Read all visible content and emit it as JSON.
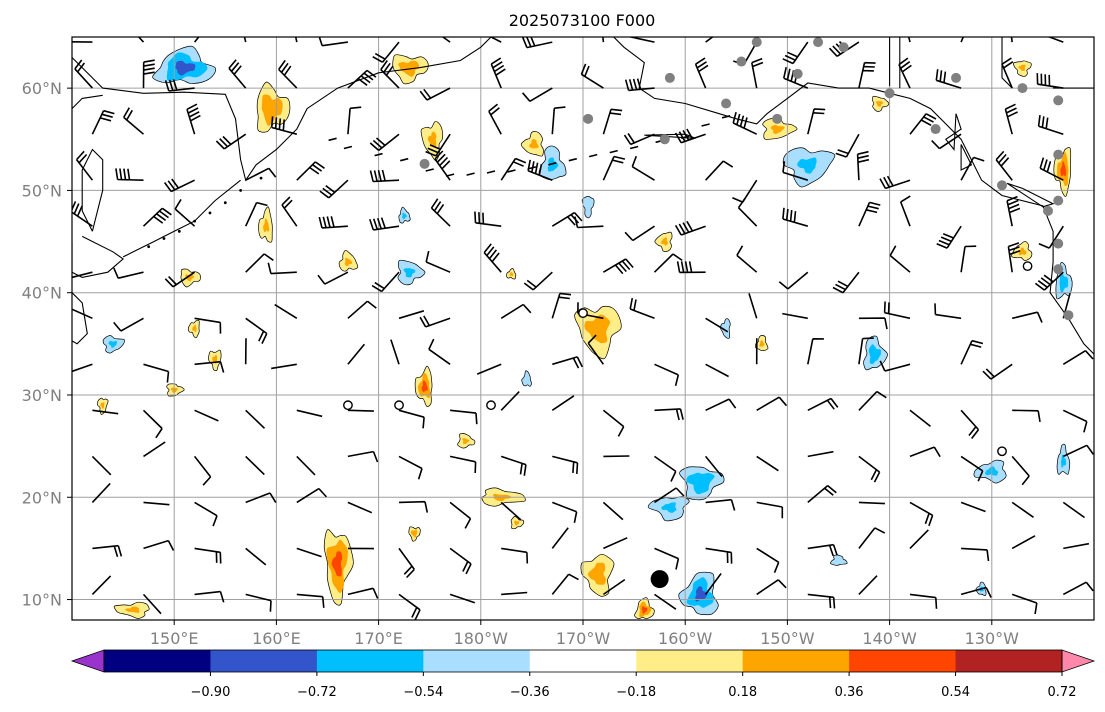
{
  "title": "2025073100 F000",
  "map": {
    "lon_range": [
      140,
      240
    ],
    "lat_range": [
      8,
      65
    ],
    "grid": true
  },
  "chart_data": {
    "type": "heatmap",
    "title": "2025073100 F000",
    "xlabel": "",
    "ylabel": "",
    "xlim": [
      140,
      240
    ],
    "ylim": [
      8,
      65
    ],
    "x_ticks": [
      {
        "value": 150,
        "label": "150°E"
      },
      {
        "value": 160,
        "label": "160°E"
      },
      {
        "value": 170,
        "label": "170°E"
      },
      {
        "value": 180,
        "label": "180°W"
      },
      {
        "value": 190,
        "label": "170°W"
      },
      {
        "value": 200,
        "label": "160°W"
      },
      {
        "value": 210,
        "label": "150°W"
      },
      {
        "value": 220,
        "label": "140°W"
      },
      {
        "value": 230,
        "label": "130°W"
      }
    ],
    "y_ticks": [
      {
        "value": 10,
        "label": "10°N"
      },
      {
        "value": 20,
        "label": "20°N"
      },
      {
        "value": 30,
        "label": "30°N"
      },
      {
        "value": 40,
        "label": "40°N"
      },
      {
        "value": 50,
        "label": "50°N"
      },
      {
        "value": 60,
        "label": "60°N"
      }
    ],
    "colorbar": {
      "levels": [
        -0.9,
        -0.72,
        -0.54,
        -0.36,
        -0.18,
        0.18,
        0.36,
        0.54,
        0.72,
        0.9
      ],
      "tick_labels": [
        "−0.90",
        "−0.72",
        "−0.54",
        "−0.36",
        "−0.18",
        "0.18",
        "0.36",
        "0.54",
        "0.72",
        "0.90"
      ],
      "colors": [
        "#9933cc",
        "#000080",
        "#3355cc",
        "#00bfff",
        "#aadeff",
        "#ffffff",
        "#ffee88",
        "#ffa500",
        "#ff4500",
        "#b22222",
        "#ff88aa"
      ],
      "extend": "both"
    },
    "features": [
      {
        "lon": 151,
        "lat": 62,
        "value": -0.6,
        "rx": 3.2,
        "ry": 2.0
      },
      {
        "lon": 159.5,
        "lat": 58,
        "value": 0.5,
        "rx": 2.0,
        "ry": 2.6
      },
      {
        "lon": 173,
        "lat": 62,
        "value": 0.45,
        "rx": 2.2,
        "ry": 1.6
      },
      {
        "lon": 175.3,
        "lat": 55,
        "value": 0.4,
        "rx": 1.3,
        "ry": 2.2
      },
      {
        "lon": 185.2,
        "lat": 54.5,
        "value": 0.4,
        "rx": 1.3,
        "ry": 1.5
      },
      {
        "lon": 187,
        "lat": 52.5,
        "value": -0.4,
        "rx": 1.5,
        "ry": 2.2
      },
      {
        "lon": 209,
        "lat": 56,
        "value": 0.4,
        "rx": 2.0,
        "ry": 1.3
      },
      {
        "lon": 212,
        "lat": 52.5,
        "value": -0.4,
        "rx": 3.0,
        "ry": 2.3
      },
      {
        "lon": 237,
        "lat": 52,
        "value": 0.55,
        "rx": 1.0,
        "ry": 2.5
      },
      {
        "lon": 159,
        "lat": 46.5,
        "value": 0.4,
        "rx": 0.9,
        "ry": 2.0
      },
      {
        "lon": 167,
        "lat": 43,
        "value": 0.4,
        "rx": 1.1,
        "ry": 1.2
      },
      {
        "lon": 173,
        "lat": 42,
        "value": -0.4,
        "rx": 1.6,
        "ry": 1.5
      },
      {
        "lon": 190.5,
        "lat": 48.5,
        "value": -0.35,
        "rx": 0.7,
        "ry": 1.5
      },
      {
        "lon": 198,
        "lat": 45,
        "value": 0.4,
        "rx": 1.0,
        "ry": 1.2
      },
      {
        "lon": 233,
        "lat": 44,
        "value": 0.4,
        "rx": 1.2,
        "ry": 1.1
      },
      {
        "lon": 237,
        "lat": 41,
        "value": -0.45,
        "rx": 1.0,
        "ry": 2.0
      },
      {
        "lon": 151.5,
        "lat": 41.5,
        "value": 0.4,
        "rx": 1.3,
        "ry": 1.0
      },
      {
        "lon": 191.5,
        "lat": 36.5,
        "value": 0.45,
        "rx": 2.6,
        "ry": 3.0
      },
      {
        "lon": 204,
        "lat": 36.5,
        "value": -0.35,
        "rx": 0.6,
        "ry": 1.3
      },
      {
        "lon": 207.5,
        "lat": 35,
        "value": 0.4,
        "rx": 0.7,
        "ry": 1.0
      },
      {
        "lon": 218.5,
        "lat": 34,
        "value": -0.45,
        "rx": 1.3,
        "ry": 2.0
      },
      {
        "lon": 144,
        "lat": 35,
        "value": -0.4,
        "rx": 1.3,
        "ry": 1.0
      },
      {
        "lon": 154,
        "lat": 33.5,
        "value": 0.4,
        "rx": 0.8,
        "ry": 1.2
      },
      {
        "lon": 174.5,
        "lat": 30.8,
        "value": 0.55,
        "rx": 1.0,
        "ry": 2.0
      },
      {
        "lon": 184.5,
        "lat": 31.5,
        "value": -0.35,
        "rx": 0.6,
        "ry": 1.0
      },
      {
        "lon": 178.5,
        "lat": 25.5,
        "value": 0.4,
        "rx": 1.0,
        "ry": 0.9
      },
      {
        "lon": 201.5,
        "lat": 21.5,
        "value": -0.5,
        "rx": 2.3,
        "ry": 2.0
      },
      {
        "lon": 198.5,
        "lat": 19,
        "value": -0.4,
        "rx": 2.3,
        "ry": 1.5
      },
      {
        "lon": 230,
        "lat": 22.5,
        "value": -0.4,
        "rx": 2.0,
        "ry": 1.3
      },
      {
        "lon": 237,
        "lat": 23.5,
        "value": -0.4,
        "rx": 0.8,
        "ry": 1.8
      },
      {
        "lon": 182,
        "lat": 20,
        "value": 0.4,
        "rx": 2.8,
        "ry": 1.0
      },
      {
        "lon": 166,
        "lat": 13.5,
        "value": 0.6,
        "rx": 1.5,
        "ry": 4.0
      },
      {
        "lon": 191.5,
        "lat": 12.5,
        "value": 0.45,
        "rx": 1.8,
        "ry": 2.5
      },
      {
        "lon": 201.5,
        "lat": 10.5,
        "value": -0.55,
        "rx": 2.0,
        "ry": 2.5
      },
      {
        "lon": 196,
        "lat": 9,
        "value": 0.55,
        "rx": 1.0,
        "ry": 1.2
      },
      {
        "lon": 183.5,
        "lat": 17.5,
        "value": 0.4,
        "rx": 0.8,
        "ry": 0.7
      },
      {
        "lon": 173.5,
        "lat": 16.5,
        "value": 0.45,
        "rx": 0.7,
        "ry": 0.8
      },
      {
        "lon": 146,
        "lat": 9,
        "value": 0.4,
        "rx": 2.2,
        "ry": 0.9
      },
      {
        "lon": 229,
        "lat": 11,
        "value": -0.4,
        "rx": 0.6,
        "ry": 0.8
      },
      {
        "lon": 215,
        "lat": 13.8,
        "value": -0.35,
        "rx": 1.0,
        "ry": 0.7
      },
      {
        "lon": 150,
        "lat": 30.5,
        "value": 0.4,
        "rx": 1.0,
        "ry": 0.8
      },
      {
        "lon": 143,
        "lat": 29,
        "value": 0.4,
        "rx": 0.6,
        "ry": 1.0
      },
      {
        "lon": 152,
        "lat": 36.5,
        "value": 0.4,
        "rx": 0.7,
        "ry": 1.0
      },
      {
        "lon": 183,
        "lat": 41.8,
        "value": 0.4,
        "rx": 0.6,
        "ry": 0.6
      },
      {
        "lon": 172.5,
        "lat": 47.5,
        "value": -0.4,
        "rx": 0.7,
        "ry": 0.9
      },
      {
        "lon": 219,
        "lat": 58.5,
        "value": 0.4,
        "rx": 1.0,
        "ry": 0.9
      },
      {
        "lon": 233,
        "lat": 62,
        "value": 0.4,
        "rx": 1.0,
        "ry": 1.0
      }
    ],
    "stations_filled": [
      {
        "lon": 207,
        "lat": 64.5
      },
      {
        "lon": 213,
        "lat": 64.5
      },
      {
        "lon": 215.5,
        "lat": 64
      },
      {
        "lon": 205.5,
        "lat": 62.6
      },
      {
        "lon": 211,
        "lat": 61.4
      },
      {
        "lon": 198.5,
        "lat": 61
      },
      {
        "lon": 204,
        "lat": 58.5
      },
      {
        "lon": 209,
        "lat": 57
      },
      {
        "lon": 190.5,
        "lat": 57
      },
      {
        "lon": 198,
        "lat": 55
      },
      {
        "lon": 174.5,
        "lat": 52.6
      },
      {
        "lon": 226.5,
        "lat": 61
      },
      {
        "lon": 233,
        "lat": 60
      },
      {
        "lon": 236.5,
        "lat": 58.8
      },
      {
        "lon": 220,
        "lat": 59.5
      },
      {
        "lon": 224.5,
        "lat": 56
      },
      {
        "lon": 236.5,
        "lat": 53.5
      },
      {
        "lon": 231,
        "lat": 50.5
      },
      {
        "lon": 235.5,
        "lat": 48
      },
      {
        "lon": 236.5,
        "lat": 49
      },
      {
        "lon": 236.5,
        "lat": 44.8
      },
      {
        "lon": 236.5,
        "lat": 42.3
      },
      {
        "lon": 237.5,
        "lat": 37.8
      }
    ],
    "stations_open": [
      {
        "lon": 190,
        "lat": 38
      },
      {
        "lon": 167,
        "lat": 29
      },
      {
        "lon": 172,
        "lat": 29
      },
      {
        "lon": 181,
        "lat": 29
      },
      {
        "lon": 231,
        "lat": 24.5
      },
      {
        "lon": 233.5,
        "lat": 42.6
      }
    ],
    "station_large": {
      "lon": 197.5,
      "lat": 12
    },
    "wind_barbs": {
      "lon_step": 5,
      "lat_step": 4.5,
      "lon_start": 142,
      "lat_start": 10.5
    }
  }
}
